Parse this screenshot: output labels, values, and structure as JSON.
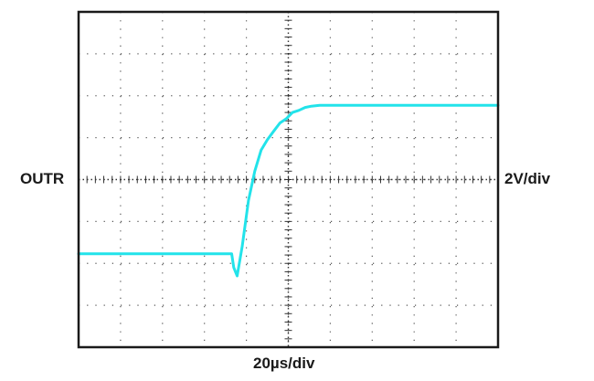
{
  "chart_data": {
    "type": "line",
    "title": "",
    "channel_label": "OUTR",
    "vertical_scale_label": "2V/div",
    "horizontal_scale_label": "20µs/div",
    "divisions": {
      "x": 10,
      "y": 8
    },
    "xlim": [
      0,
      10
    ],
    "ylim": [
      -4,
      4
    ],
    "grid": true,
    "grid_style": "dotted",
    "colors": {
      "trace": "#22e3ea",
      "frame": "#1a1a1a",
      "grid": "#555555"
    },
    "series": [
      {
        "x": [
          0,
          1,
          2,
          3,
          3.65,
          3.7,
          3.78,
          3.9,
          4.05,
          4.2,
          4.35,
          4.5,
          4.65,
          4.8,
          4.95,
          5.1,
          5.25,
          5.4,
          5.55,
          5.75,
          6,
          6.5,
          7,
          8,
          9,
          10
        ],
        "y": [
          -1.77,
          -1.77,
          -1.77,
          -1.77,
          -1.77,
          -2.1,
          -2.3,
          -1.6,
          -0.5,
          0.2,
          0.7,
          0.95,
          1.15,
          1.35,
          1.45,
          1.6,
          1.65,
          1.72,
          1.75,
          1.77,
          1.77,
          1.77,
          1.77,
          1.77,
          1.77,
          1.77
        ]
      }
    ]
  }
}
